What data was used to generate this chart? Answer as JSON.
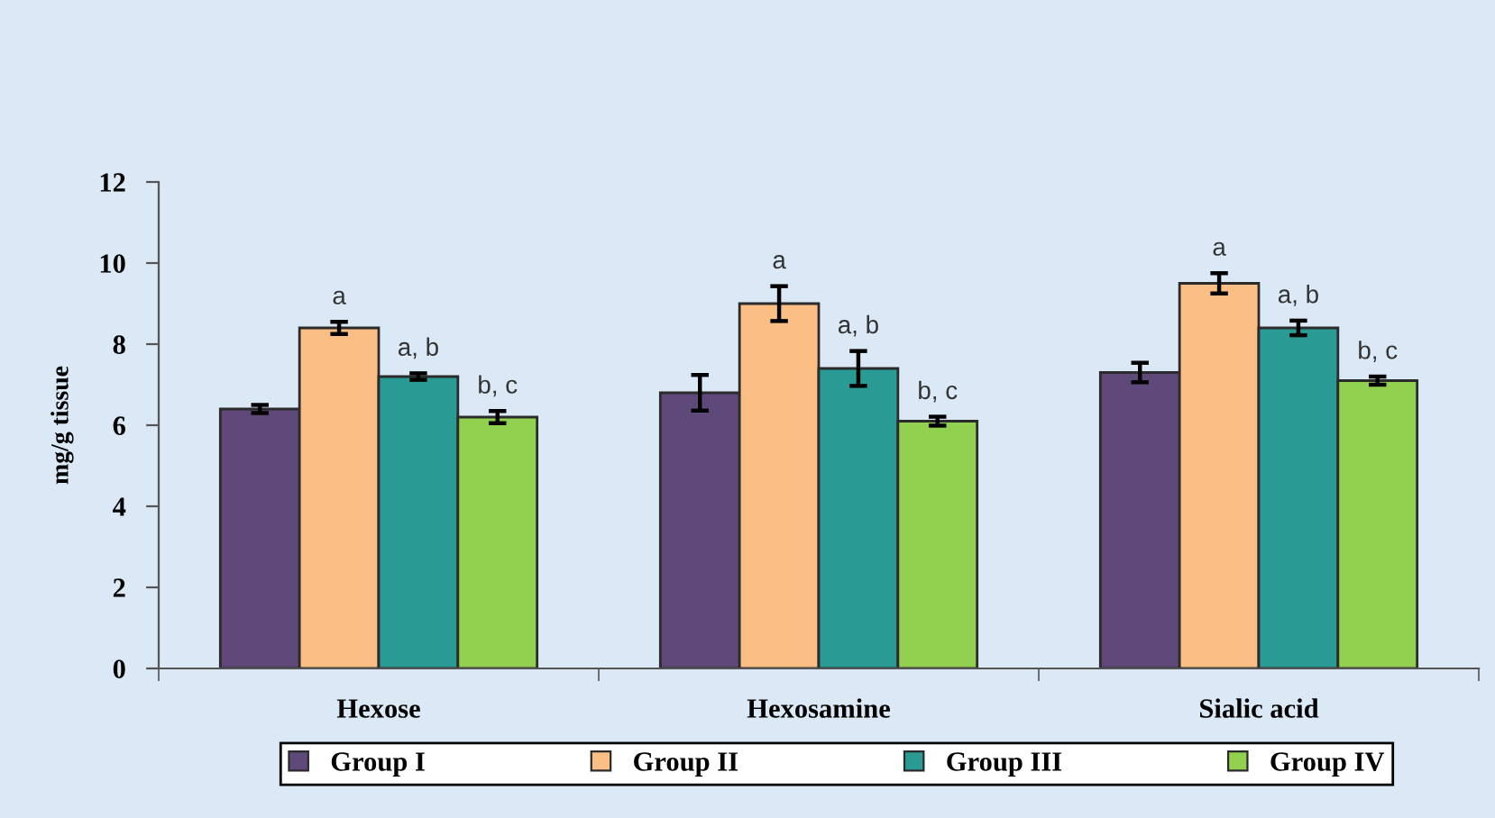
{
  "chart_data": {
    "type": "bar",
    "ylabel": "mg/g tissue",
    "categories": [
      "Hexose",
      "Hexosamine",
      "Sialic acid"
    ],
    "series": [
      {
        "name": "Group I",
        "color": "#5f497a",
        "values": [
          6.4,
          6.8,
          7.3
        ],
        "errors": [
          0.1,
          0.44,
          0.24
        ]
      },
      {
        "name": "Group II",
        "color": "#fbbf86",
        "values": [
          8.4,
          9.0,
          9.5
        ],
        "errors": [
          0.15,
          0.43,
          0.25
        ],
        "value_labels": [
          "a",
          "a",
          "a"
        ]
      },
      {
        "name": "Group III",
        "color": "#2a9a94",
        "values": [
          7.2,
          7.4,
          8.4
        ],
        "errors": [
          0.08,
          0.43,
          0.18
        ],
        "value_labels": [
          "a, b",
          "a, b",
          "a, b"
        ]
      },
      {
        "name": "Group IV",
        "color": "#92d050",
        "values": [
          6.2,
          6.1,
          7.1
        ],
        "errors": [
          0.15,
          0.11,
          0.1
        ],
        "value_labels": [
          "b, c",
          "b, c",
          "b, c"
        ]
      }
    ],
    "ylim": [
      0,
      12
    ],
    "yticks": [
      0,
      2,
      4,
      6,
      8,
      10,
      12
    ],
    "legend": "bottom"
  }
}
